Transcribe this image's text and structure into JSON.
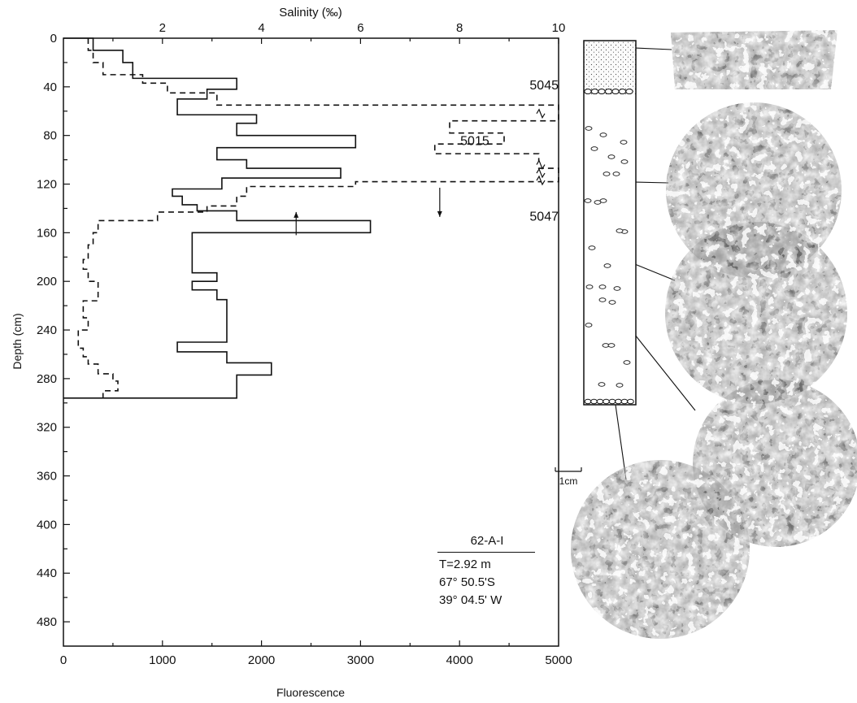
{
  "chart_data": {
    "type": "line",
    "orientation": "depth-profile",
    "top_axis": {
      "label": "Salinity (‰)",
      "range": [
        0,
        10
      ],
      "ticks": [
        "2",
        "4",
        "6",
        "8",
        "10"
      ],
      "tick_values": [
        2,
        4,
        6,
        8,
        10
      ]
    },
    "bottom_axis": {
      "label": "Fluorescence",
      "range": [
        0,
        5000
      ],
      "ticks": [
        "0",
        "1000",
        "2000",
        "3000",
        "4000",
        "5000"
      ],
      "tick_values": [
        0,
        1000,
        2000,
        3000,
        4000,
        5000
      ]
    },
    "y_axis": {
      "label": "Depth (cm)",
      "range": [
        0,
        500
      ],
      "ticks": [
        "0",
        "40",
        "80",
        "120",
        "160",
        "200",
        "240",
        "280",
        "320",
        "360",
        "400",
        "440",
        "480"
      ],
      "tick_values": [
        0,
        40,
        80,
        120,
        160,
        200,
        240,
        280,
        320,
        360,
        400,
        440,
        480
      ]
    },
    "series": [
      {
        "style": "solid",
        "axis": "bottom",
        "depth_bounds": [
          0,
          10,
          20,
          33,
          42,
          50,
          63,
          70,
          80,
          90,
          100,
          107,
          115,
          124,
          130,
          137,
          142,
          150,
          160,
          170,
          193,
          200,
          207,
          215,
          223,
          250,
          258,
          267,
          277,
          283,
          296
        ],
        "values": [
          300,
          600,
          700,
          1750,
          1450,
          1150,
          1950,
          1750,
          2950,
          1550,
          1850,
          2800,
          1600,
          1100,
          1200,
          1350,
          1750,
          3100,
          1300,
          1300,
          1550,
          1300,
          1550,
          1650,
          1650,
          1150,
          1650,
          2100,
          1750,
          1750
        ],
        "bottom_value": 0
      },
      {
        "style": "dashed",
        "axis": "top",
        "depth_bounds": [
          0,
          10,
          20,
          30,
          37,
          45,
          55,
          65,
          68,
          72,
          78,
          87,
          95,
          100,
          107,
          115,
          118,
          122,
          130,
          138,
          143,
          150,
          160,
          170,
          182,
          190,
          200,
          208,
          216,
          230,
          240,
          248,
          255,
          262,
          268,
          276,
          282,
          290,
          296
        ],
        "values": [
          0.5,
          0.6,
          0.8,
          1.6,
          2.1,
          3.1,
          10.0,
          10.0,
          7.8,
          7.8,
          8.9,
          7.5,
          9.6,
          9.6,
          10.0,
          10.0,
          5.9,
          3.7,
          3.5,
          2.9,
          1.9,
          0.7,
          0.6,
          0.5,
          0.4,
          0.5,
          0.7,
          0.7,
          0.4,
          0.5,
          0.3,
          0.3,
          0.4,
          0.5,
          0.7,
          1.0,
          1.1,
          0.8
        ],
        "bottom_value": 0.8
      }
    ],
    "annotations": [
      {
        "text": "5045",
        "depth": 42,
        "salinity": 10.0
      },
      {
        "text": "5015",
        "depth": 88,
        "salinity": 8.6
      },
      {
        "text": "5047",
        "depth": 150,
        "salinity": 10.0
      }
    ],
    "markers": [
      {
        "kind": "arrow-up",
        "fluorescence": 2350,
        "depth_from": 162,
        "depth_to": 143
      },
      {
        "kind": "arrow-down",
        "fluorescence": 3800,
        "depth_from": 123,
        "depth_to": 147
      }
    ],
    "grid": false
  },
  "core_sample": {
    "info_title": "62-A-I",
    "thickness": "T=2.92 m",
    "latitude": "67° 50.5'S",
    "longitude": "39° 04.5' W",
    "scale_label": "1cm",
    "depth_range_cm": [
      0,
      296
    ],
    "top_layer_depth_cm": 40,
    "photo_link_depths_cm": [
      6,
      115,
      182,
      240,
      296
    ]
  },
  "colors": {
    "ink": "#111111",
    "paper": "#ffffff",
    "photo_dark": "#1a1a1a",
    "photo_light": "#e8e8e8"
  }
}
